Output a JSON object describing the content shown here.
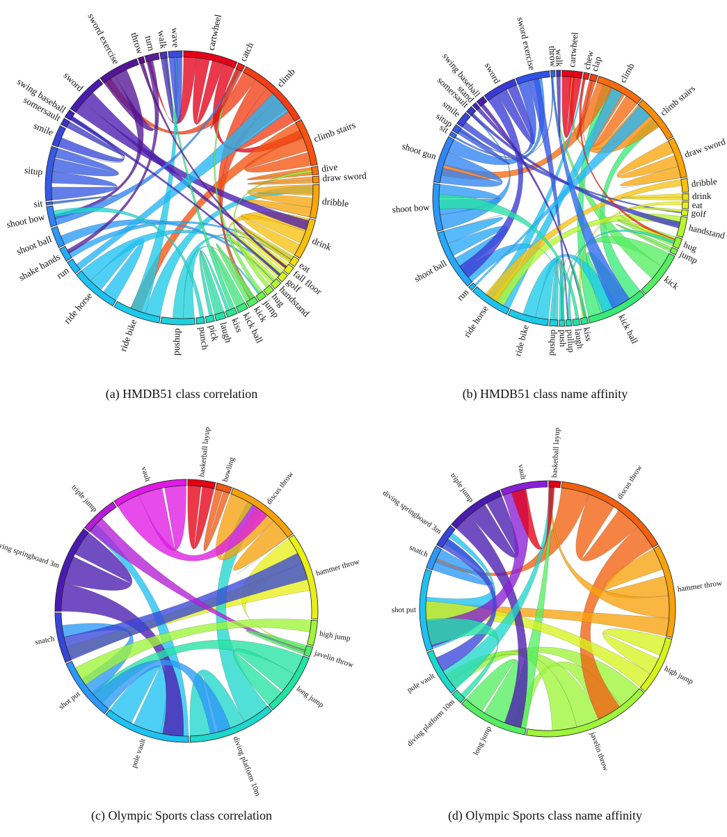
{
  "panels": [
    {
      "id": "a",
      "caption": "(a) HMDB51 class correlation",
      "labels": [
        "cartwheel",
        "catch",
        "climb",
        "climb stairs",
        "dive",
        "draw sword",
        "dribble",
        "drink",
        "eat",
        "fall floor",
        "golf",
        "handstand",
        "hug",
        "jump",
        "kick",
        "kick ball",
        "kiss",
        "laugh",
        "pick",
        "punch",
        "pushup",
        "ride bike",
        "ride horse",
        "run",
        "shake hands",
        "shoot ball",
        "shoot bow",
        "sit",
        "situp",
        "smile",
        "somersault",
        "swing baseball",
        "sword",
        "sword exercise",
        "throw",
        "turn",
        "walk",
        "wave"
      ],
      "weights": [
        8,
        1,
        11,
        7,
        1.2,
        1,
        5,
        6,
        1.2,
        1.2,
        1.2,
        1.2,
        1.2,
        1.2,
        1.5,
        1.5,
        1.5,
        1.5,
        1.2,
        1.2,
        5,
        7,
        7,
        2,
        2,
        3,
        3,
        0.4,
        8,
        3,
        1,
        1.2,
        6,
        6,
        0.8,
        2,
        1,
        2
      ],
      "colors": [
        "#e5001a",
        "#ed1f1a",
        "#f23d16",
        "#f5530f",
        "#f7700c",
        "#f98c0b",
        "#f9a60c",
        "#f7c10f",
        "#f2dc13",
        "#e7ef1a",
        "#d3f524",
        "#b5f72e",
        "#95f53b",
        "#75f24c",
        "#55ee62",
        "#3aea78",
        "#29e690",
        "#24e2a5",
        "#21ddb9",
        "#1fd7cc",
        "#1dd1dd",
        "#1ccaea",
        "#1ec2f2",
        "#22b6f7",
        "#27a8f8",
        "#2c98f7",
        "#3084f3",
        "#336fec",
        "#365ae3",
        "#3846d8",
        "#3a34cb",
        "#4025be",
        "#4a1bb0",
        "#531496",
        "#5b0f80",
        "#5a1d9a",
        "#4a30bf",
        "#3a4bda"
      ]
    },
    {
      "id": "b",
      "caption": "(b) HMDB51 class name affinity",
      "labels": [
        "cartwheel",
        "chew",
        "clap",
        "climb",
        "climb stairs",
        "draw sword",
        "dribble",
        "drink",
        "eat",
        "golf",
        "handstand",
        "hug",
        "jump",
        "kick",
        "kick ball",
        "kiss",
        "laugh",
        "pullup",
        "push",
        "pushup",
        "ride bike",
        "ride horse",
        "run",
        "shoot ball",
        "shoot bow",
        "shoot gun",
        "sit",
        "situp",
        "smile",
        "somersault",
        "stand",
        "swing baseball",
        "sword",
        "sword exercise",
        "throw",
        "walk"
      ],
      "weights": [
        3,
        0.8,
        1,
        7,
        7,
        6,
        2,
        1,
        1,
        0.8,
        3,
        1.5,
        0.8,
        7,
        9,
        1,
        1,
        0.8,
        0.8,
        1.2,
        6,
        6,
        0.6,
        9,
        7,
        7,
        0.6,
        1,
        2,
        1,
        0.6,
        1.2,
        5,
        5,
        0.6,
        0.6
      ],
      "colors": [
        "#e5001a",
        "#ef2418",
        "#f24314",
        "#f76c0f",
        "#f98c0b",
        "#f9a60c",
        "#f7c10f",
        "#f2dc13",
        "#e7ef1a",
        "#d3f524",
        "#b5f72e",
        "#95f53b",
        "#75f24c",
        "#55ee62",
        "#3aea78",
        "#29e690",
        "#24e2a5",
        "#21ddb9",
        "#1fd7cc",
        "#1dd1dd",
        "#1ccaea",
        "#1ec2f2",
        "#22b6f7",
        "#27a8f8",
        "#2c98f7",
        "#3084f3",
        "#336fec",
        "#365ae3",
        "#3846d8",
        "#3a34cb",
        "#4025be",
        "#4a1bb0",
        "#3a3ad6",
        "#2f52e6",
        "#2a68ef",
        "#4a30bf"
      ]
    },
    {
      "id": "c",
      "caption": "(c) Olympic Sports class correlation",
      "labels": [
        "basketball layup",
        "bowling",
        "discus throw",
        "hammer throw",
        "high jump",
        "javelin throw",
        "long jump",
        "diving platform 10m",
        "pole vault",
        "shot put",
        "snatch",
        "diving springboard 3m",
        "triple jump",
        "vault"
      ],
      "weights": [
        2.2,
        1.2,
        6,
        7,
        2,
        0.8,
        5,
        7,
        7,
        5,
        4,
        7,
        3,
        6
      ],
      "colors": [
        "#e50014",
        "#f25a12",
        "#f5a10c",
        "#e8ef1a",
        "#9ff53a",
        "#4ded68",
        "#25e3a3",
        "#1fd7cc",
        "#1ec2f2",
        "#2c98f7",
        "#3846d8",
        "#4a1bb0",
        "#b31ed6",
        "#e01ae6"
      ]
    },
    {
      "id": "d",
      "caption": "(d) Olympic Sports class name affinity",
      "labels": [
        "basketball layup",
        "discus throw",
        "hammer throw",
        "high jump",
        "javelin throw",
        "long jump",
        "diving platform 10m",
        "pole vault",
        "shot put",
        "snatch",
        "diving springboard 3m",
        "triple jump",
        "vault"
      ],
      "weights": [
        1,
        10,
        8,
        5,
        11,
        6,
        1,
        4,
        7,
        2,
        2,
        5,
        4
      ],
      "colors": [
        "#e50014",
        "#f2600f",
        "#f7a20c",
        "#d6f21f",
        "#9ef53a",
        "#55ee62",
        "#24e2a5",
        "#1fd7cc",
        "#1ec2f2",
        "#2c98f7",
        "#3846d8",
        "#4a1bb0",
        "#8b1fd6"
      ]
    }
  ]
}
